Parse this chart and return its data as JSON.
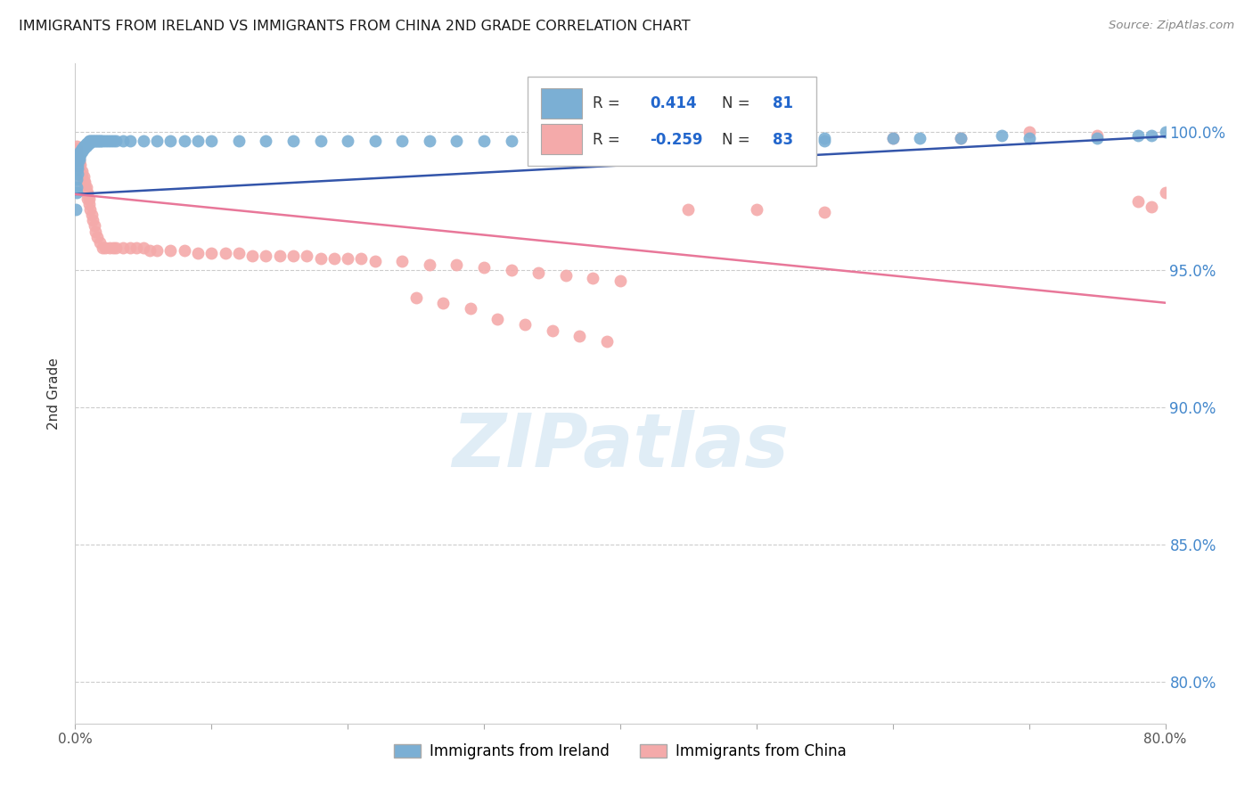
{
  "title": "IMMIGRANTS FROM IRELAND VS IMMIGRANTS FROM CHINA 2ND GRADE CORRELATION CHART",
  "source": "Source: ZipAtlas.com",
  "ylabel": "2nd Grade",
  "ytick_labels": [
    "100.0%",
    "95.0%",
    "90.0%",
    "85.0%",
    "80.0%"
  ],
  "ytick_values": [
    1.0,
    0.95,
    0.9,
    0.85,
    0.8
  ],
  "xlim": [
    0.0,
    0.8
  ],
  "ylim": [
    0.785,
    1.025
  ],
  "watermark": "ZIPatlas",
  "legend_ireland_R": "0.414",
  "legend_ireland_N": "81",
  "legend_china_R": "-0.259",
  "legend_china_N": "83",
  "ireland_color": "#7BAFD4",
  "china_color": "#F4AAAA",
  "ireland_line_color": "#3355AA",
  "china_line_color": "#E87799",
  "background_color": "#FFFFFF",
  "grid_color": "#CCCCCC",
  "title_color": "#1a1a1a",
  "axis_label_color": "#333333",
  "right_tick_color": "#4488CC",
  "xtick_positions": [
    0.0,
    0.1,
    0.2,
    0.3,
    0.4,
    0.5,
    0.6,
    0.7,
    0.8
  ],
  "ireland_x": [
    0.0005,
    0.001,
    0.001,
    0.001,
    0.002,
    0.002,
    0.002,
    0.002,
    0.003,
    0.003,
    0.003,
    0.004,
    0.004,
    0.004,
    0.005,
    0.005,
    0.005,
    0.006,
    0.006,
    0.007,
    0.007,
    0.008,
    0.008,
    0.009,
    0.009,
    0.01,
    0.01,
    0.011,
    0.012,
    0.013,
    0.014,
    0.015,
    0.016,
    0.017,
    0.018,
    0.019,
    0.02,
    0.022,
    0.024,
    0.026,
    0.028,
    0.03,
    0.035,
    0.04,
    0.05,
    0.06,
    0.07,
    0.08,
    0.09,
    0.1,
    0.12,
    0.14,
    0.16,
    0.18,
    0.2,
    0.22,
    0.24,
    0.26,
    0.28,
    0.3,
    0.32,
    0.34,
    0.36,
    0.38,
    0.4,
    0.42,
    0.44,
    0.46,
    0.48,
    0.5,
    0.55,
    0.6,
    0.65,
    0.7,
    0.75,
    0.78,
    0.79,
    0.8,
    0.55,
    0.62,
    0.68
  ],
  "ireland_y": [
    0.972,
    0.978,
    0.98,
    0.983,
    0.985,
    0.987,
    0.988,
    0.99,
    0.99,
    0.991,
    0.992,
    0.992,
    0.993,
    0.993,
    0.993,
    0.994,
    0.994,
    0.994,
    0.995,
    0.995,
    0.995,
    0.995,
    0.996,
    0.996,
    0.996,
    0.996,
    0.997,
    0.997,
    0.997,
    0.997,
    0.997,
    0.997,
    0.997,
    0.997,
    0.997,
    0.997,
    0.997,
    0.997,
    0.997,
    0.997,
    0.997,
    0.997,
    0.997,
    0.997,
    0.997,
    0.997,
    0.997,
    0.997,
    0.997,
    0.997,
    0.997,
    0.997,
    0.997,
    0.997,
    0.997,
    0.997,
    0.997,
    0.997,
    0.997,
    0.997,
    0.997,
    0.997,
    0.997,
    0.997,
    0.997,
    0.997,
    0.997,
    0.997,
    0.997,
    0.997,
    0.998,
    0.998,
    0.998,
    0.998,
    0.998,
    0.999,
    0.999,
    1.0,
    0.997,
    0.998,
    0.999
  ],
  "china_x": [
    0.001,
    0.001,
    0.001,
    0.002,
    0.002,
    0.003,
    0.003,
    0.003,
    0.004,
    0.004,
    0.005,
    0.005,
    0.006,
    0.006,
    0.007,
    0.007,
    0.008,
    0.008,
    0.009,
    0.009,
    0.01,
    0.01,
    0.011,
    0.012,
    0.013,
    0.014,
    0.015,
    0.016,
    0.018,
    0.02,
    0.022,
    0.025,
    0.028,
    0.03,
    0.035,
    0.04,
    0.045,
    0.05,
    0.055,
    0.06,
    0.07,
    0.08,
    0.09,
    0.1,
    0.11,
    0.12,
    0.13,
    0.14,
    0.15,
    0.16,
    0.17,
    0.18,
    0.19,
    0.2,
    0.21,
    0.22,
    0.24,
    0.26,
    0.28,
    0.3,
    0.32,
    0.34,
    0.36,
    0.38,
    0.4,
    0.45,
    0.5,
    0.55,
    0.6,
    0.65,
    0.7,
    0.75,
    0.78,
    0.79,
    0.8,
    0.25,
    0.27,
    0.29,
    0.31,
    0.33,
    0.35,
    0.37,
    0.39
  ],
  "china_y": [
    0.993,
    0.994,
    0.995,
    0.99,
    0.992,
    0.988,
    0.989,
    0.99,
    0.986,
    0.988,
    0.984,
    0.986,
    0.982,
    0.984,
    0.98,
    0.982,
    0.978,
    0.98,
    0.976,
    0.978,
    0.974,
    0.976,
    0.972,
    0.97,
    0.968,
    0.966,
    0.964,
    0.962,
    0.96,
    0.958,
    0.958,
    0.958,
    0.958,
    0.958,
    0.958,
    0.958,
    0.958,
    0.958,
    0.957,
    0.957,
    0.957,
    0.957,
    0.956,
    0.956,
    0.956,
    0.956,
    0.955,
    0.955,
    0.955,
    0.955,
    0.955,
    0.954,
    0.954,
    0.954,
    0.954,
    0.953,
    0.953,
    0.952,
    0.952,
    0.951,
    0.95,
    0.949,
    0.948,
    0.947,
    0.946,
    0.972,
    0.972,
    0.971,
    0.998,
    0.998,
    1.0,
    0.999,
    0.975,
    0.973,
    0.978,
    0.94,
    0.938,
    0.936,
    0.932,
    0.93,
    0.928,
    0.926,
    0.924
  ],
  "ireland_line_x": [
    0.0,
    0.8
  ],
  "ireland_line_y": [
    0.9775,
    0.9985
  ],
  "china_line_x": [
    0.0,
    0.8
  ],
  "china_line_y": [
    0.9775,
    0.938
  ]
}
